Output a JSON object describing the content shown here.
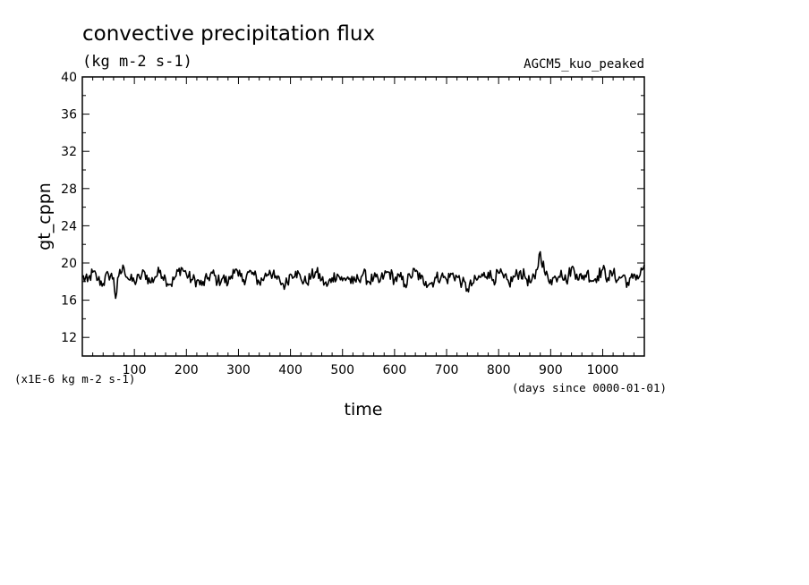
{
  "chart_data": {
    "type": "line",
    "title": "convective precipitation flux",
    "units_label": "(kg m-2 s-1)",
    "dataset_label": "AGCM5_kuo_peaked",
    "ylabel": "gt_cppn",
    "xlabel": "time",
    "y_scale_label": "(x1E-6 kg m-2 s-1)",
    "x_units_label": "(days since 0000-01-01)",
    "xlim": [
      0,
      1080
    ],
    "ylim": [
      10,
      40
    ],
    "x_ticks": [
      100,
      200,
      300,
      400,
      500,
      600,
      700,
      800,
      900,
      1000
    ],
    "y_ticks": [
      12,
      16,
      20,
      24,
      28,
      32,
      36,
      40
    ],
    "grid": false,
    "colors": {
      "line": "#000000",
      "axes": "#000000",
      "background": "#ffffff"
    },
    "series": [
      {
        "x": [
          0,
          10,
          20,
          30,
          40,
          50,
          60,
          64,
          70,
          80,
          90,
          100,
          110,
          120,
          130,
          140,
          150,
          160,
          170,
          180,
          190,
          200,
          210,
          220,
          230,
          240,
          250,
          260,
          270,
          280,
          290,
          300,
          310,
          320,
          330,
          340,
          350,
          360,
          370,
          380,
          390,
          400,
          410,
          420,
          430,
          440,
          450,
          460,
          470,
          480,
          490,
          500,
          510,
          520,
          530,
          540,
          550,
          560,
          570,
          580,
          590,
          600,
          610,
          620,
          630,
          640,
          650,
          660,
          670,
          680,
          690,
          700,
          710,
          720,
          730,
          740,
          750,
          760,
          770,
          780,
          790,
          800,
          810,
          820,
          830,
          840,
          850,
          860,
          870,
          880,
          890,
          900,
          910,
          920,
          930,
          940,
          950,
          960,
          970,
          980,
          990,
          1000,
          1010,
          1020,
          1030,
          1040,
          1050,
          1060,
          1070,
          1080
        ],
        "y": [
          18.5,
          18.0,
          19.0,
          18.2,
          17.8,
          18.8,
          18.4,
          16.2,
          18.6,
          19.5,
          18.2,
          18.0,
          18.4,
          19.0,
          17.9,
          18.5,
          19.2,
          18.3,
          17.7,
          18.6,
          19.5,
          18.8,
          18.2,
          18.1,
          17.6,
          18.3,
          18.9,
          18.0,
          18.4,
          17.8,
          19.3,
          18.6,
          18.2,
          19.0,
          18.7,
          17.9,
          18.5,
          19.2,
          18.4,
          18.0,
          17.6,
          18.8,
          19.1,
          18.3,
          17.9,
          18.6,
          19.0,
          18.2,
          17.5,
          18.4,
          18.8,
          18.1,
          18.5,
          17.8,
          18.3,
          18.9,
          18.0,
          18.4,
          17.9,
          18.7,
          19.0,
          18.2,
          18.5,
          17.7,
          18.6,
          19.1,
          18.3,
          18.0,
          17.8,
          18.4,
          18.6,
          18.2,
          18.8,
          18.5,
          17.9,
          17.2,
          17.8,
          18.3,
          18.6,
          19.0,
          18.2,
          18.9,
          18.4,
          17.8,
          18.5,
          19.0,
          18.6,
          17.9,
          18.3,
          21.2,
          18.7,
          18.2,
          18.4,
          19.2,
          18.0,
          19.5,
          18.8,
          18.3,
          19.0,
          18.1,
          18.6,
          19.3,
          18.4,
          18.9,
          18.2,
          18.7,
          17.6,
          18.8,
          18.5,
          19.8
        ]
      }
    ]
  }
}
